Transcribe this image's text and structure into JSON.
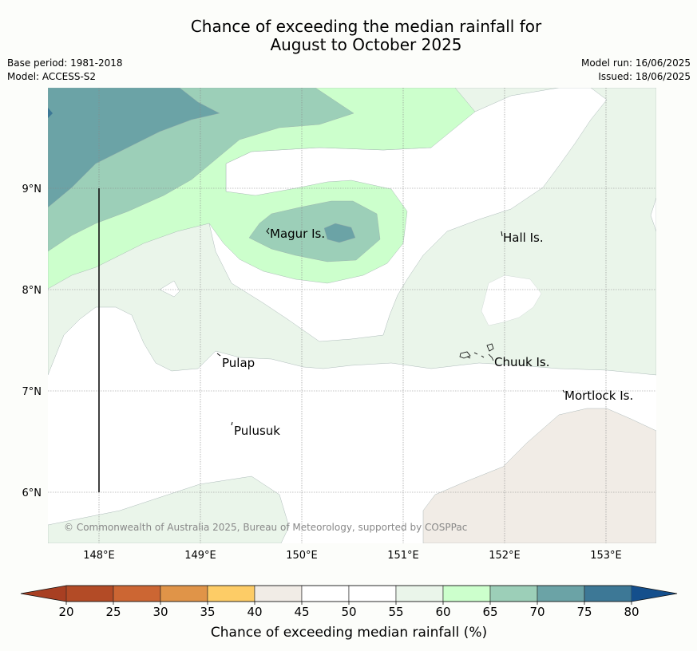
{
  "title_line1": "Chance of exceeding the median rainfall for",
  "title_line2": "August to October 2025",
  "meta": {
    "base_period": "Base period: 1981-2018",
    "model": "Model: ACCESS-S2",
    "model_run": "Model run: 16/06/2025",
    "issued": "Issued: 18/06/2025"
  },
  "map": {
    "lat_labels": [
      "9°N",
      "8°N",
      "7°N",
      "6°N"
    ],
    "lon_labels": [
      "148°E",
      "149°E",
      "150°E",
      "151°E",
      "152°E",
      "153°E"
    ],
    "places": [
      "Magur Is.",
      "Hall Is.",
      "Pulap",
      "Chuuk Is.",
      "Mortlock Is.",
      "Pulusuk"
    ],
    "copyright": "© Commonwealth of Australia 2025, Bureau of Meteorology, supported by COSPPac"
  },
  "colorbar": {
    "ticks": [
      "20",
      "25",
      "30",
      "35",
      "40",
      "45",
      "50",
      "55",
      "60",
      "65",
      "70",
      "75",
      "80"
    ],
    "label": "Chance of exceeding median rainfall (%)",
    "colors": [
      "#b34b26",
      "#cc6633",
      "#e09448",
      "#fdcc66",
      "#f1ece6",
      "#ffffff",
      "#ffffff",
      "#eaf5ea",
      "#ccffcc",
      "#9ccfb8",
      "#6ba3a6",
      "#3d7896"
    ],
    "under_color": "#a83f22",
    "over_color": "#144f8c"
  }
}
